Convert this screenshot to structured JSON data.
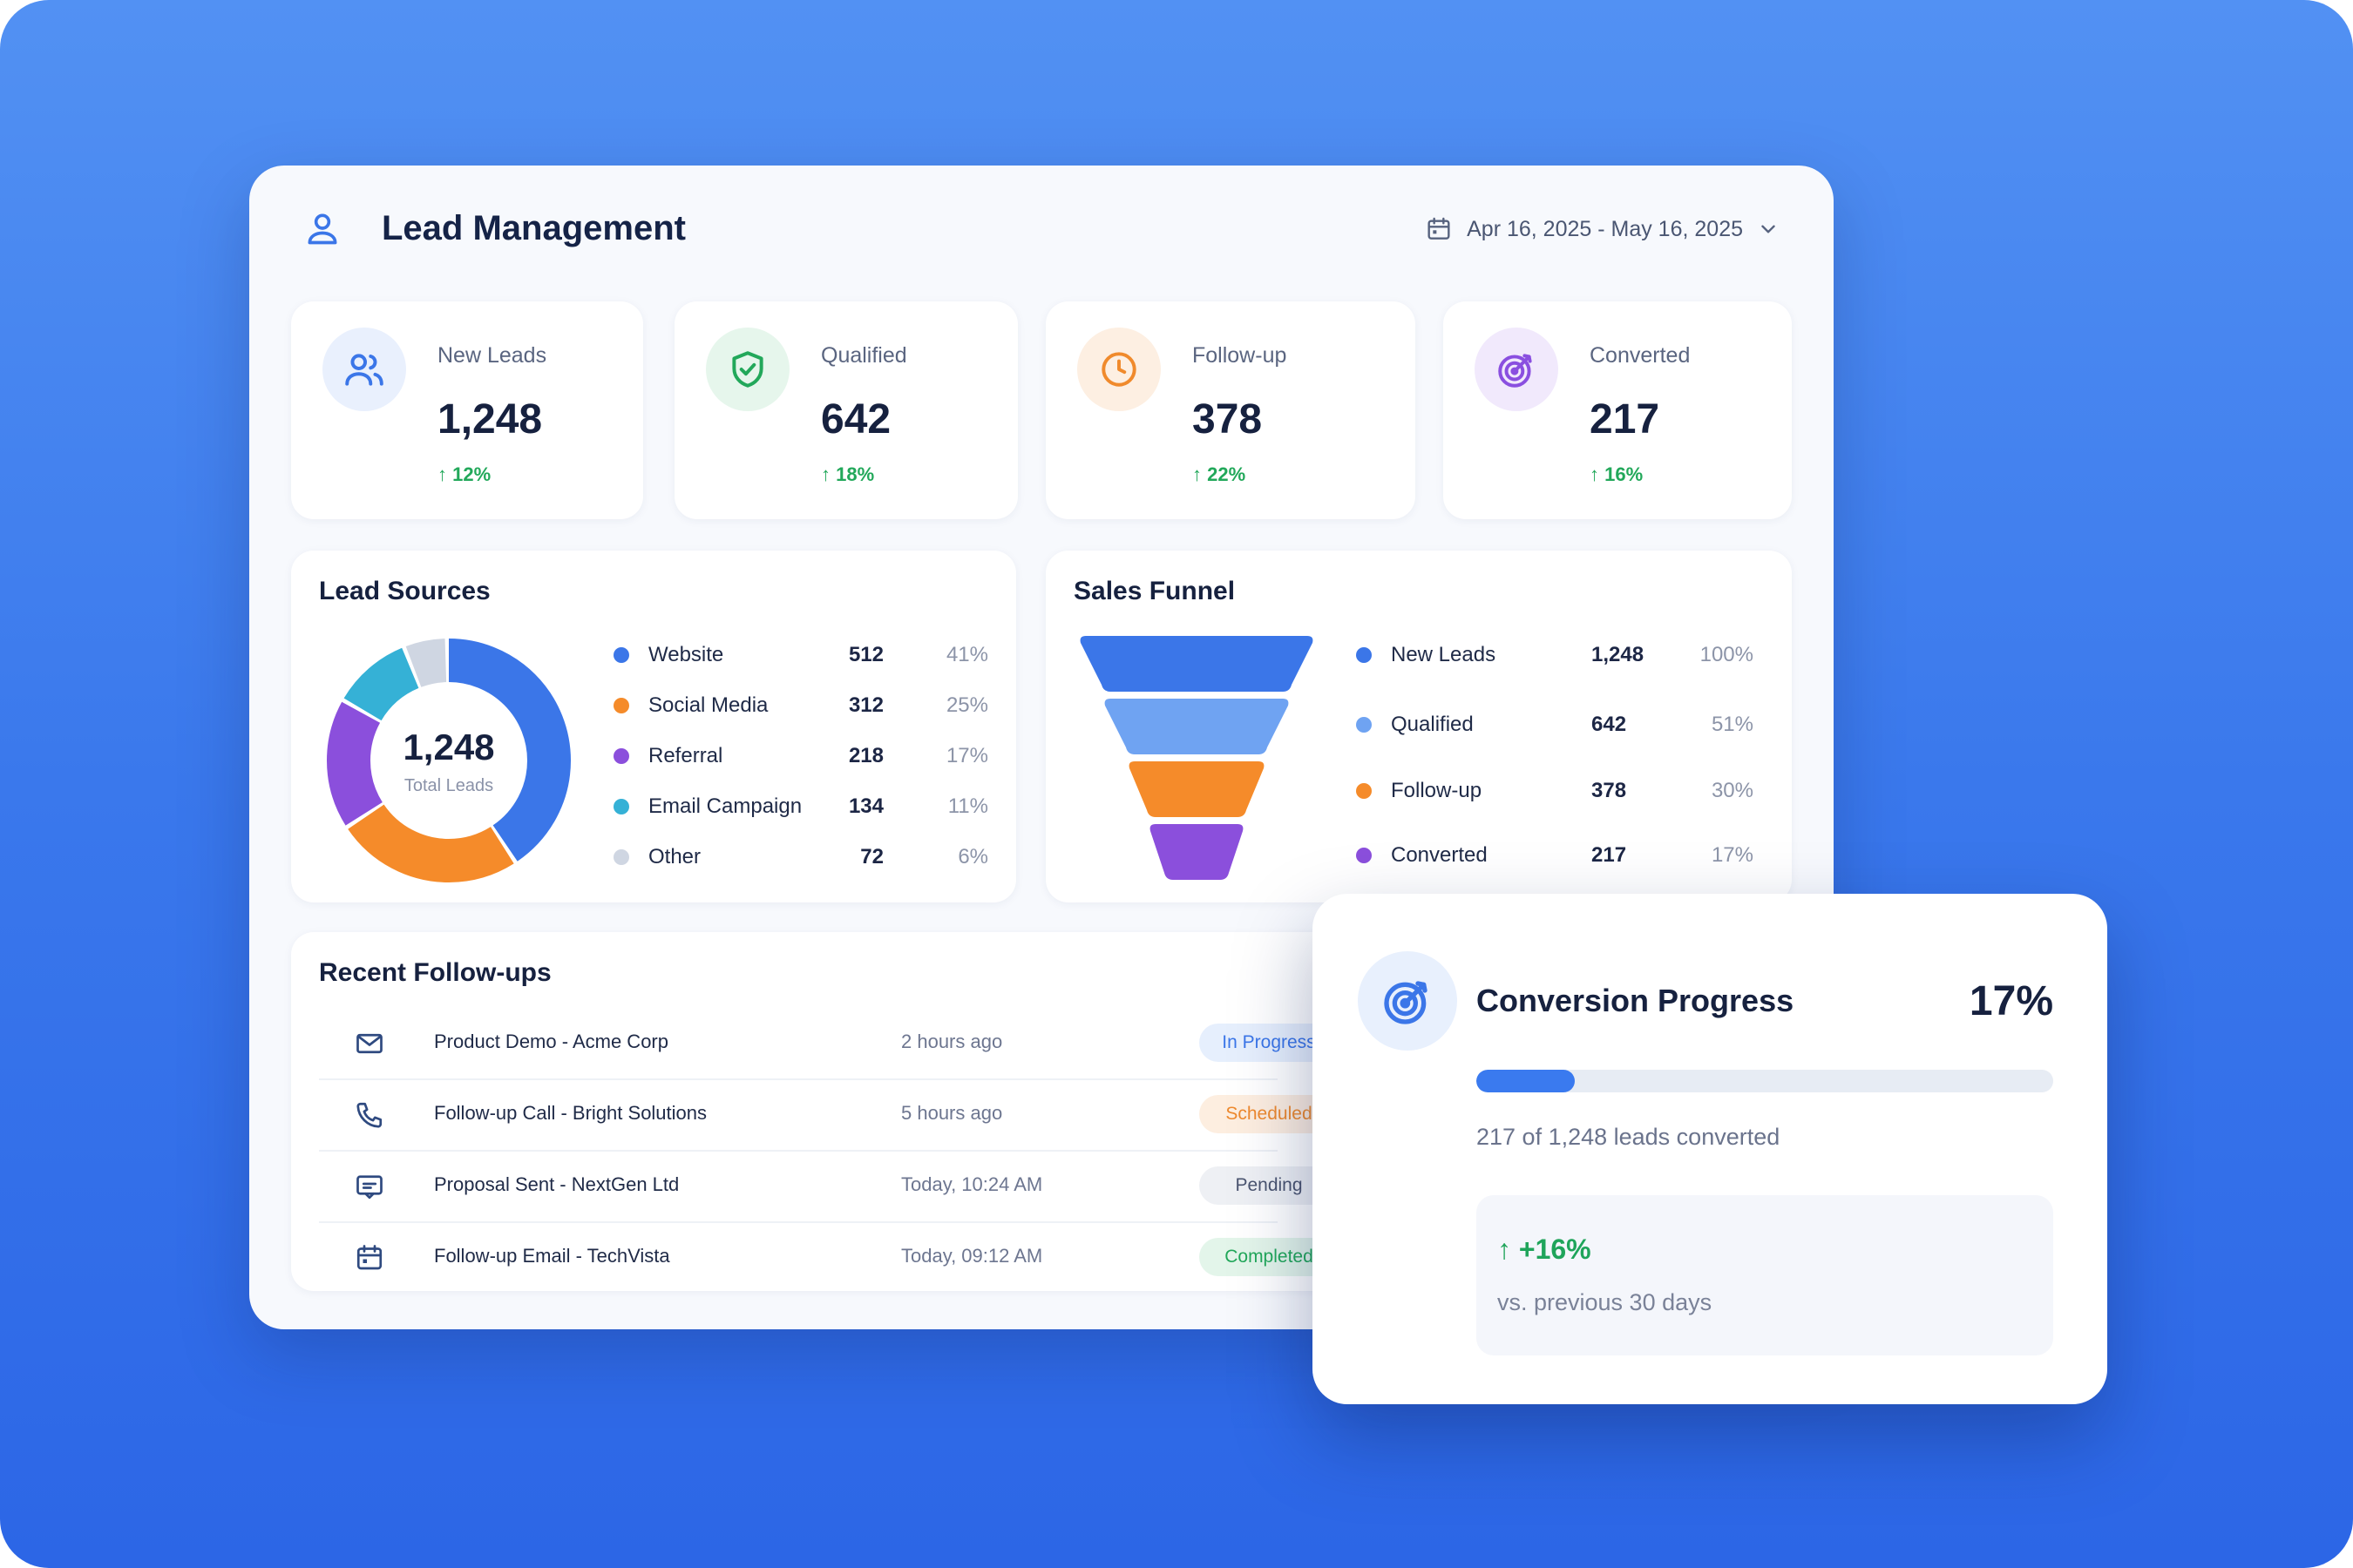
{
  "header": {
    "title": "Lead Management",
    "date_range": "Apr 16, 2025 - May 16, 2025",
    "icon": "user-icon"
  },
  "stats": [
    {
      "label": "New Leads",
      "value": "1,248",
      "delta": "↑ 12%",
      "icon": "users-icon",
      "accent": "#3b76e8",
      "bg": "#e9f0fd"
    },
    {
      "label": "Qualified",
      "value": "642",
      "delta": "↑ 18%",
      "icon": "shield-check-icon",
      "accent": "#22a85a",
      "bg": "#e6f6ec"
    },
    {
      "label": "Follow-up",
      "value": "378",
      "delta": "↑ 22%",
      "icon": "clock-icon",
      "accent": "#f08a2c",
      "bg": "#fdefe2"
    },
    {
      "label": "Converted",
      "value": "217",
      "delta": "↑ 16%",
      "icon": "target-icon",
      "accent": "#8a4fe0",
      "bg": "#f1e9fc"
    }
  ],
  "lead_sources": {
    "title": "Lead Sources",
    "total_value": "1,248",
    "total_label": "Total Leads",
    "items": [
      {
        "name": "Website",
        "value": "512",
        "pct": "41%",
        "color": "#3b76e8"
      },
      {
        "name": "Social Media",
        "value": "312",
        "pct": "25%",
        "color": "#f58b2a"
      },
      {
        "name": "Referral",
        "value": "218",
        "pct": "17%",
        "color": "#8b4fdc"
      },
      {
        "name": "Email Campaign",
        "value": "134",
        "pct": "11%",
        "color": "#35b1d6"
      },
      {
        "name": "Other",
        "value": "72",
        "pct": "6%",
        "color": "#cfd6e2"
      }
    ]
  },
  "sales_funnel": {
    "title": "Sales Funnel",
    "items": [
      {
        "name": "New Leads",
        "value": "1,248",
        "pct": "100%",
        "color": "#3b76e8"
      },
      {
        "name": "Qualified",
        "value": "642",
        "pct": "51%",
        "color": "#6fa3f2"
      },
      {
        "name": "Follow-up",
        "value": "378",
        "pct": "30%",
        "color": "#f58b2a"
      },
      {
        "name": "Converted",
        "value": "217",
        "pct": "17%",
        "color": "#8b4fdc"
      }
    ]
  },
  "chart_data": [
    {
      "type": "pie",
      "title": "Lead Sources",
      "categories": [
        "Website",
        "Social Media",
        "Referral",
        "Email Campaign",
        "Other"
      ],
      "values": [
        512,
        312,
        218,
        134,
        72
      ]
    },
    {
      "type": "bar",
      "title": "Sales Funnel",
      "categories": [
        "New Leads",
        "Qualified",
        "Follow-up",
        "Converted"
      ],
      "values": [
        1248,
        642,
        378,
        217
      ]
    }
  ],
  "follow_ups": {
    "title": "Recent Follow-ups",
    "rows": [
      {
        "title": "Product Demo - Acme Corp",
        "time": "2 hours ago",
        "status": "In Progress",
        "icon": "mail-icon",
        "badge_bg": "#e6effd",
        "badge_fg": "#3b76e8"
      },
      {
        "title": "Follow-up Call - Bright Solutions",
        "time": "5 hours ago",
        "status": "Scheduled",
        "icon": "phone-icon",
        "badge_bg": "#fdeee0",
        "badge_fg": "#ee8a2f"
      },
      {
        "title": "Proposal Sent - NextGen Ltd",
        "time": "Today, 10:24 AM",
        "status": "Pending",
        "icon": "message-icon",
        "badge_bg": "#eef0f4",
        "badge_fg": "#4b5570"
      },
      {
        "title": "Follow-up Email - TechVista",
        "time": "Today, 09:12 AM",
        "status": "Completed",
        "icon": "calendar-icon",
        "badge_bg": "#e3f5ea",
        "badge_fg": "#22a85a"
      }
    ]
  },
  "conversion": {
    "title": "Conversion Progress",
    "pct": "17%",
    "progress": 0.17,
    "summary": "217 of 1,248 leads converted",
    "delta": "↑ +16%",
    "note": "vs. previous 30 days",
    "icon": "target-icon"
  }
}
